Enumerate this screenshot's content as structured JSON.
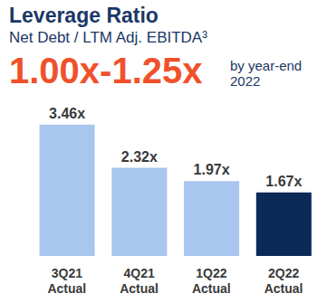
{
  "chart_data": {
    "type": "bar",
    "title": "Leverage Ratio",
    "subtitle": "Net Debt / LTM Adj. EBITDA³",
    "annotations": [
      "1.00x-1.25x",
      "by year-end 2022"
    ],
    "categories": [
      "3Q21 Actual",
      "4Q21 Actual",
      "1Q22 Actual",
      "2Q22 Actual"
    ],
    "values": [
      3.46,
      2.32,
      1.97,
      1.67
    ],
    "value_labels": [
      "3.46x",
      "2.32x",
      "1.97x",
      "1.67x"
    ],
    "colors": [
      "#a8c6ee",
      "#a8c6ee",
      "#a8c6ee",
      "#0c2a57"
    ],
    "ylim": [
      0,
      3.5
    ],
    "data_labels": true,
    "tick_labels": "x",
    "grid": false
  }
}
